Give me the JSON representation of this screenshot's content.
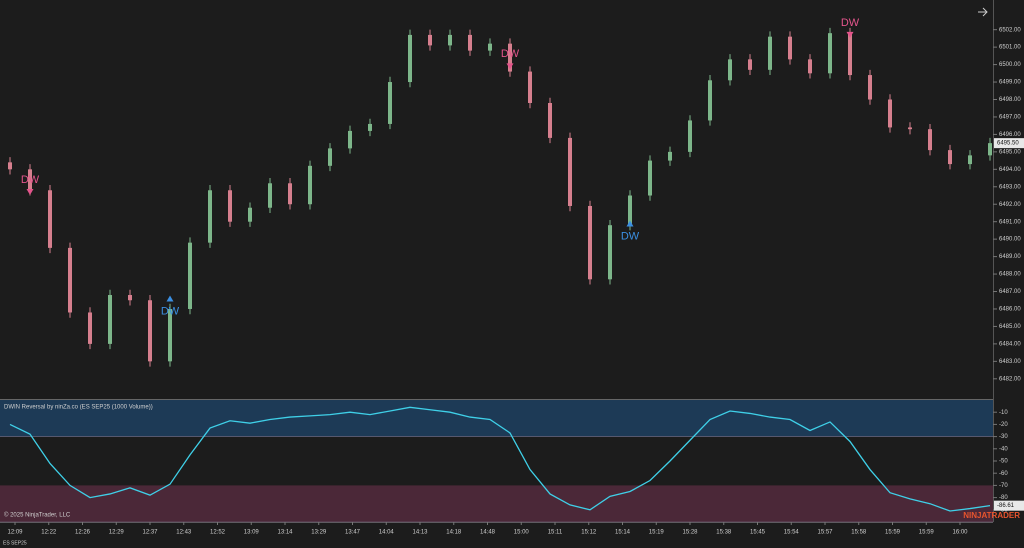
{
  "chart_data": [
    {
      "type": "candlestick",
      "open": [
        6494.4,
        6494.0,
        6492.8,
        6489.5,
        6485.8,
        6484.0,
        6486.8,
        6486.5,
        6483.0,
        6486.0,
        6489.8,
        6492.8,
        6491.0,
        6491.8,
        6493.2,
        6492.0,
        6494.2,
        6495.2,
        6496.2,
        6496.6,
        6499.0,
        6501.7,
        6501.1,
        6501.7,
        6500.8,
        6501.2,
        6499.6,
        6497.8,
        6495.8,
        6491.9,
        6487.7,
        6490.8,
        6492.5,
        6494.5,
        6495.0,
        6496.8,
        6499.1,
        6500.3,
        6499.7,
        6501.6,
        6500.3,
        6499.5,
        6501.8,
        6499.4,
        6498.0,
        6496.4,
        6496.3,
        6495.1,
        6494.3,
        6494.8
      ],
      "high": [
        6494.7,
        6494.3,
        6493.1,
        6489.8,
        6486.1,
        6487.1,
        6487.1,
        6486.8,
        6486.3,
        6490.1,
        6493.1,
        6493.1,
        6492.1,
        6493.5,
        6493.5,
        6494.5,
        6495.5,
        6496.5,
        6496.9,
        6499.3,
        6502.0,
        6502.0,
        6502.0,
        6502.0,
        6501.5,
        6501.5,
        6499.9,
        6498.1,
        6496.1,
        6492.2,
        6491.1,
        6492.8,
        6494.8,
        6495.3,
        6497.1,
        6499.4,
        6500.6,
        6500.6,
        6501.9,
        6501.9,
        6500.6,
        6502.1,
        6502.1,
        6499.7,
        6498.3,
        6496.7,
        6496.6,
        6495.4,
        6495.1,
        6495.8
      ],
      "low": [
        6493.7,
        6492.5,
        6489.2,
        6485.5,
        6483.7,
        6483.7,
        6486.2,
        6482.7,
        6482.7,
        6485.7,
        6489.5,
        6490.7,
        6490.7,
        6491.5,
        6491.7,
        6491.7,
        6493.9,
        6494.9,
        6495.9,
        6496.3,
        6498.7,
        6500.8,
        6500.8,
        6500.5,
        6500.5,
        6499.3,
        6497.5,
        6495.5,
        6491.6,
        6487.4,
        6487.4,
        6490.5,
        6492.2,
        6494.2,
        6494.7,
        6496.5,
        6498.8,
        6499.4,
        6499.4,
        6500.0,
        6499.2,
        6499.2,
        6499.1,
        6497.7,
        6496.1,
        6496.0,
        6494.8,
        6494.0,
        6494.0,
        6494.5
      ],
      "close": [
        6494.0,
        6492.8,
        6489.5,
        6485.8,
        6484.0,
        6486.8,
        6486.5,
        6483.0,
        6486.0,
        6489.8,
        6492.8,
        6491.0,
        6491.8,
        6493.2,
        6492.0,
        6494.2,
        6495.2,
        6496.2,
        6496.6,
        6499.0,
        6501.7,
        6501.1,
        6501.7,
        6500.8,
        6501.2,
        6499.6,
        6497.8,
        6495.8,
        6491.9,
        6487.7,
        6490.8,
        6492.5,
        6494.5,
        6495.0,
        6496.8,
        6499.1,
        6500.3,
        6499.7,
        6501.6,
        6500.3,
        6499.5,
        6501.8,
        6499.4,
        6498.0,
        6496.4,
        6496.3,
        6495.1,
        6494.3,
        6494.8,
        6495.5
      ],
      "colors": {
        "up": "#7db68a",
        "down": "#d67f8e"
      },
      "ylim": [
        6480.9,
        6503.7
      ],
      "yticks": [
        {
          "value": 6482,
          "label": "6482.00"
        },
        {
          "value": 6483,
          "label": "6483.00"
        },
        {
          "value": 6484,
          "label": "6484.00"
        },
        {
          "value": 6485,
          "label": "6485.00"
        },
        {
          "value": 6486,
          "label": "6486.00"
        },
        {
          "value": 6487,
          "label": "6487.00"
        },
        {
          "value": 6488,
          "label": "6488.00"
        },
        {
          "value": 6489,
          "label": "6489.00"
        },
        {
          "value": 6490,
          "label": "6490.00"
        },
        {
          "value": 6491,
          "label": "6491.00"
        },
        {
          "value": 6492,
          "label": "6492.00"
        },
        {
          "value": 6493,
          "label": "6493.00"
        },
        {
          "value": 6494,
          "label": "6494.00"
        },
        {
          "value": 6495,
          "label": "6495.00"
        },
        {
          "value": 6496,
          "label": "6496.00"
        },
        {
          "value": 6497,
          "label": "6497.00"
        },
        {
          "value": 6498,
          "label": "6498.00"
        },
        {
          "value": 6499,
          "label": "6499.00"
        },
        {
          "value": 6500,
          "label": "6500.00"
        },
        {
          "value": 6501,
          "label": "6501.00"
        },
        {
          "value": 6502,
          "label": "6502.00"
        }
      ],
      "last_price": {
        "value": 6495.5,
        "label": "6495.50"
      },
      "signals": [
        {
          "text": "DW",
          "direction": "down",
          "bar": 1,
          "price": 6492.7
        },
        {
          "text": "DW",
          "direction": "up",
          "bar": 8,
          "price": 6486.6
        },
        {
          "text": "DW",
          "direction": "down",
          "bar": 25,
          "price": 6499.9
        },
        {
          "text": "DW",
          "direction": "up",
          "bar": 31,
          "price": 6490.9
        },
        {
          "text": "DW",
          "direction": "down",
          "bar": 42,
          "price": 6501.7
        }
      ],
      "signal_colors": {
        "down": "#e4558c",
        "up": "#3b8fe2"
      }
    },
    {
      "type": "line",
      "title": "DWIN Reversal by ninZa.co (ES SEP25 (1000 Volume))",
      "values": [
        -20,
        -28,
        -52,
        -70,
        -80,
        -77,
        -72,
        -78,
        -69,
        -45,
        -23,
        -17,
        -19,
        -16,
        -14,
        -13,
        -12,
        -10,
        -12,
        -9,
        -6,
        -8,
        -10,
        -14,
        -16,
        -27,
        -57,
        -77,
        -86,
        -90,
        -79,
        -75,
        -66,
        -50,
        -33,
        -16,
        -9,
        -11,
        -14,
        -16,
        -25,
        -18,
        -34,
        -57,
        -76,
        -81,
        -85,
        -91,
        -89,
        -86.61
      ],
      "color": "#3fd0e8",
      "ylim": [
        -100,
        0
      ],
      "yticks": [
        -10,
        -20,
        -30,
        -40,
        -50,
        -60,
        -70,
        -80,
        -90
      ],
      "zones": [
        {
          "from": 0,
          "to": -30,
          "color": "#1d3a56"
        },
        {
          "from": -70,
          "to": -100,
          "color": "#4b2838"
        }
      ],
      "x_labels": [
        "12:09",
        "12:22",
        "12:26",
        "12:29",
        "12:37",
        "12:43",
        "12:52",
        "13:09",
        "13:14",
        "13:29",
        "13:47",
        "14:04",
        "14:13",
        "14:18",
        "14:48",
        "15:00",
        "15:11",
        "15:12",
        "15:14",
        "15:19",
        "15:28",
        "15:38",
        "15:45",
        "15:54",
        "15:57",
        "15:58",
        "15:59",
        "15:59",
        "16:00"
      ]
    }
  ],
  "copyright": "© 2025 NinjaTrader, LLC",
  "instrument": "ES SEP25",
  "brand": "NINJATRADER"
}
